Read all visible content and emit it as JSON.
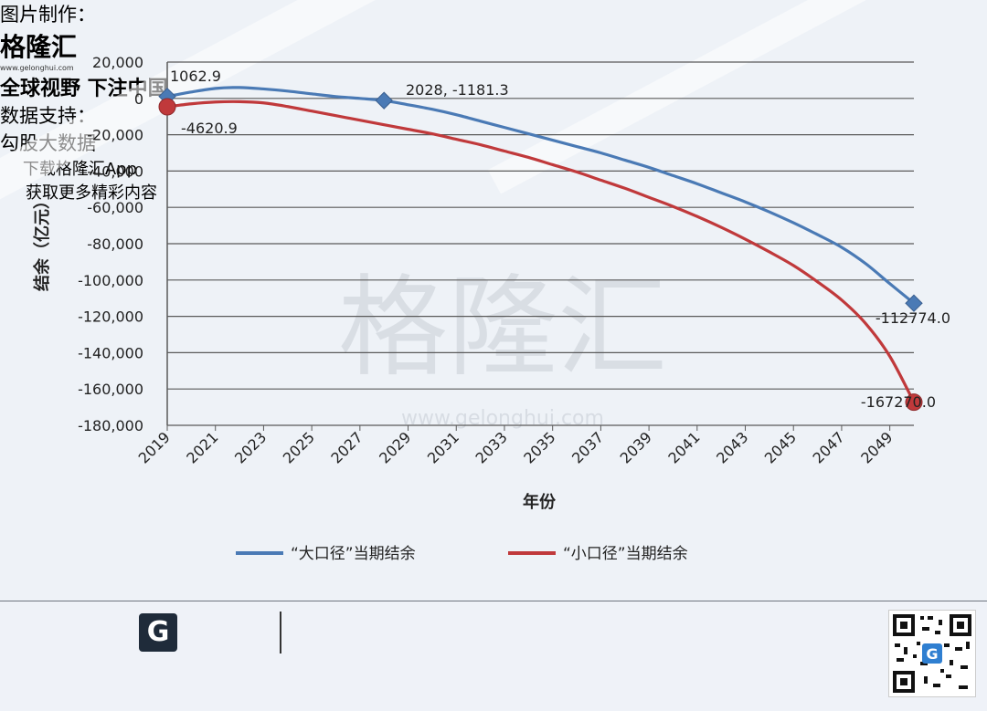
{
  "chart_data": {
    "type": "line",
    "xlabel": "年份",
    "ylabel": "结余（亿元）",
    "ylim": [
      -180000,
      20000
    ],
    "y_ticks": [
      20000,
      0,
      -20000,
      -40000,
      -60000,
      -80000,
      -100000,
      -120000,
      -140000,
      -160000,
      -180000
    ],
    "y_tick_labels": [
      "20,000",
      "0",
      "-20,000",
      "-40,000",
      "-60,000",
      "-80,000",
      "-100,000",
      "-120,000",
      "-140,000",
      "-160,000",
      "-180,000"
    ],
    "xlim": [
      2019,
      2050
    ],
    "x_ticks": [
      2019,
      2021,
      2023,
      2025,
      2027,
      2029,
      2031,
      2033,
      2035,
      2037,
      2039,
      2041,
      2043,
      2045,
      2047,
      2049
    ],
    "grid": true,
    "legend_position": "bottom",
    "x": [
      2019,
      2020,
      2021,
      2022,
      2023,
      2024,
      2025,
      2026,
      2027,
      2028,
      2029,
      2030,
      2031,
      2032,
      2033,
      2034,
      2035,
      2036,
      2037,
      2038,
      2039,
      2040,
      2041,
      2042,
      2043,
      2044,
      2045,
      2046,
      2047,
      2048,
      2049,
      2050
    ],
    "series": [
      {
        "name": "“大口径”当期结余",
        "color": "#4a7ab5",
        "values": [
          1062.9,
          3500,
          5500,
          6000,
          5200,
          4000,
          2500,
          1000,
          0,
          -1181.3,
          -3500,
          -6000,
          -9000,
          -12500,
          -16000,
          -19500,
          -23000,
          -26500,
          -30000,
          -34000,
          -38000,
          -42500,
          -47000,
          -52000,
          -57000,
          -62500,
          -68500,
          -75000,
          -82000,
          -91000,
          -102000,
          -112774.0
        ],
        "markers": [
          {
            "x": 2019,
            "y": 1062.9,
            "label": "1062.9"
          },
          {
            "x": 2028,
            "y": -1181.3,
            "label": "2028, -1181.3"
          },
          {
            "x": 2050,
            "y": -112774.0,
            "label": "-112774.0"
          }
        ]
      },
      {
        "name": "“小口径”当期结余",
        "color": "#c0393b",
        "values": [
          -4620.9,
          -3000,
          -2000,
          -1800,
          -2500,
          -4500,
          -7000,
          -9500,
          -12000,
          -14500,
          -17000,
          -19500,
          -22500,
          -25500,
          -29000,
          -32500,
          -36500,
          -40500,
          -45000,
          -49500,
          -54500,
          -59500,
          -65000,
          -71000,
          -77500,
          -84500,
          -92000,
          -101000,
          -111000,
          -124000,
          -142000,
          -167270.0
        ],
        "markers": [
          {
            "x": 2019,
            "y": -4620.9,
            "label": "-4620.9"
          },
          {
            "x": 2050,
            "y": -167270.0,
            "label": "-167270.0"
          }
        ]
      }
    ]
  },
  "watermark": {
    "text": "格隆汇",
    "url": "www.gelonghui.com"
  },
  "footer": {
    "made_by_label": "图片制作：",
    "brand_name": "格隆汇",
    "brand_url": "www.gelonghui.com",
    "slogan": "全球视野 下注中国",
    "data_support_label": "数据支持：",
    "data_support_value": "勾股大数据",
    "download_text": "下载格隆汇App",
    "download_sub": "获取更多精彩内容"
  }
}
